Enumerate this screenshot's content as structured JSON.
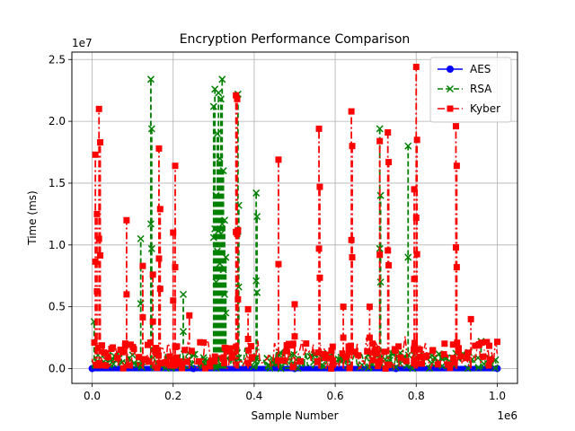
{
  "chart_data": {
    "type": "line",
    "title": "Encryption Performance Comparison",
    "xlabel": "Sample Number",
    "ylabel": "Time (ms)",
    "x_offset_label": "1e6",
    "y_offset_label": "1e7",
    "xlim": [
      -50000,
      1050000
    ],
    "ylim": [
      -1200000,
      25600000
    ],
    "x_scale": 1000000,
    "y_scale": 10000000,
    "x_ticks": [
      0,
      200000,
      400000,
      600000,
      800000,
      1000000
    ],
    "x_tick_labels": [
      "0.0",
      "0.2",
      "0.4",
      "0.6",
      "0.8",
      "1.0"
    ],
    "y_ticks": [
      0,
      5000000,
      10000000,
      15000000,
      20000000,
      25000000
    ],
    "y_tick_labels": [
      "0.0",
      "0.5",
      "1.0",
      "1.5",
      "2.0",
      "2.5"
    ],
    "grid": true,
    "legend_position": "top-right",
    "series": [
      {
        "name": "AES",
        "color": "#0000ff",
        "marker": "circle",
        "linestyle": "solid",
        "x": [
          0,
          250000,
          500000,
          750000,
          1000000
        ],
        "y": [
          0,
          0,
          0,
          0,
          0
        ]
      },
      {
        "name": "RSA",
        "color": "#008000",
        "marker": "x",
        "linestyle": "dashed",
        "x": [
          5000,
          120000,
          145000,
          147000,
          225000,
          300000,
          303000,
          306000,
          309000,
          312000,
          315000,
          318000,
          321000,
          324000,
          327000,
          330000,
          360000,
          362000,
          405000,
          407000,
          710000,
          712000,
          780000,
          960000
        ],
        "y": [
          3800000,
          10500000,
          23400000,
          19400000,
          6000000,
          21200000,
          22600000,
          14000000,
          19000000,
          22300000,
          17000000,
          21800000,
          23400000,
          16000000,
          12000000,
          9000000,
          22200000,
          13200000,
          14200000,
          12300000,
          19400000,
          14000000,
          18000000,
          2200000
        ]
      },
      {
        "name": "Kyber",
        "color": "#ff0000",
        "marker": "square",
        "linestyle": "dashdot",
        "x": [
          8000,
          12000,
          17000,
          20000,
          85000,
          125000,
          150000,
          165000,
          168000,
          200000,
          205000,
          240000,
          355000,
          358000,
          360000,
          385000,
          460000,
          500000,
          560000,
          562000,
          620000,
          640000,
          642000,
          685000,
          710000,
          730000,
          732000,
          795000,
          800000,
          802000,
          898000,
          900000,
          935000
        ],
        "y": [
          17300000,
          12500000,
          21000000,
          18300000,
          12000000,
          8300000,
          7600000,
          17800000,
          12900000,
          11000000,
          16400000,
          4300000,
          22100000,
          21800000,
          11200000,
          4800000,
          16900000,
          5200000,
          19400000,
          14700000,
          5000000,
          20800000,
          18000000,
          5000000,
          18400000,
          19100000,
          16700000,
          14500000,
          24400000,
          18500000,
          19600000,
          16400000,
          4000000
        ]
      }
    ]
  }
}
